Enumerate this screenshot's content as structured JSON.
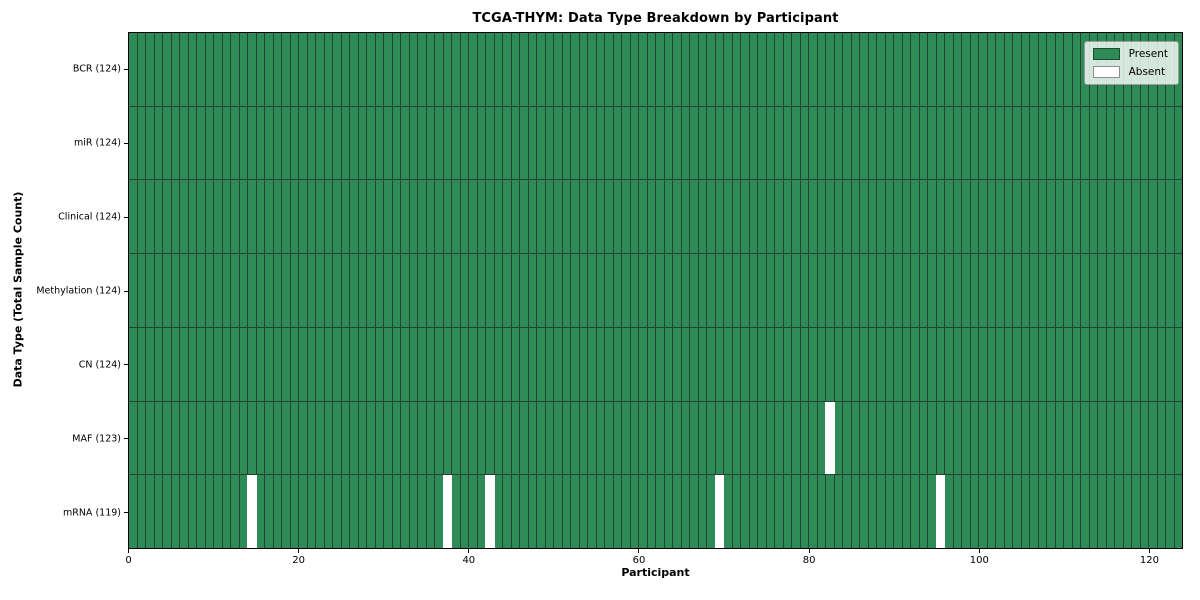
{
  "chart_data": {
    "type": "heatmap",
    "title": "TCGA-THYM: Data Type Breakdown by Participant",
    "xlabel": "Participant",
    "ylabel": "Data Type (Total Sample Count)",
    "x_range": [
      0,
      124
    ],
    "x_ticks": [
      0,
      20,
      40,
      60,
      80,
      100,
      120
    ],
    "n_participants": 124,
    "rows": [
      {
        "key": "bcr",
        "label": "BCR (124)",
        "present_count": 124,
        "absent_participants": []
      },
      {
        "key": "mir",
        "label": "miR (124)",
        "present_count": 124,
        "absent_participants": []
      },
      {
        "key": "clinical",
        "label": "Clinical (124)",
        "present_count": 124,
        "absent_participants": []
      },
      {
        "key": "methylation",
        "label": "Methylation (124)",
        "present_count": 124,
        "absent_participants": []
      },
      {
        "key": "cn",
        "label": "CN (124)",
        "present_count": 124,
        "absent_participants": []
      },
      {
        "key": "maf",
        "label": "MAF (123)",
        "present_count": 123,
        "absent_participants": [
          82
        ]
      },
      {
        "key": "mrna",
        "label": "mRNA (119)",
        "present_count": 119,
        "absent_participants": [
          14,
          37,
          42,
          69,
          95
        ]
      }
    ],
    "legend": [
      {
        "label": "Present",
        "color": "#2e8b57"
      },
      {
        "label": "Absent",
        "color": "#ffffff"
      }
    ],
    "colors": {
      "present": "#2e8b57",
      "absent": "#ffffff",
      "cell_border": "#21452f",
      "spine": "#000000",
      "background": "#ffffff"
    },
    "legend_position": "upper right",
    "grid": "cell-borders"
  }
}
